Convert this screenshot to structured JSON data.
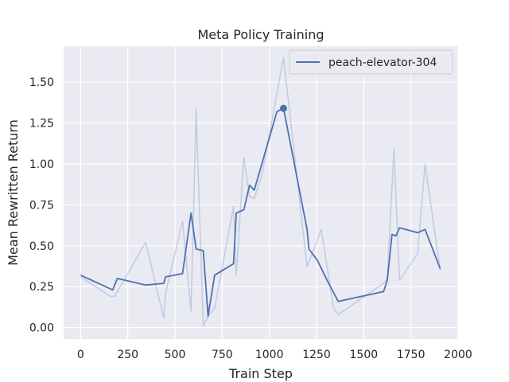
{
  "chart_data": {
    "type": "line",
    "title": "Meta Policy Training",
    "xlabel": "Train Step",
    "ylabel": "Mean Rewritten Return",
    "xlim": [
      -90,
      2000
    ],
    "ylim": [
      -0.07,
      1.72
    ],
    "xticks": [
      0,
      250,
      500,
      750,
      1000,
      1250,
      1500,
      1750,
      2000
    ],
    "yticks": [
      0.0,
      0.25,
      0.5,
      0.75,
      1.0,
      1.25,
      1.5
    ],
    "xtick_labels": [
      "0",
      "250",
      "500",
      "750",
      "1000",
      "1250",
      "1500",
      "1750",
      "2000"
    ],
    "ytick_labels": [
      "0.00",
      "0.25",
      "0.50",
      "0.75",
      "1.00",
      "1.25",
      "1.50"
    ],
    "grid": true,
    "legend_position": "top-right",
    "colors": {
      "background": "#EAEAF2",
      "grid": "#FFFFFF",
      "line": "#4C72B0",
      "raw_line": "#4C72B0"
    },
    "series": [
      {
        "name": "peach-elevator-304",
        "role": "smoothed",
        "x": [
          0,
          170,
          195,
          345,
          440,
          450,
          540,
          585,
          612,
          650,
          675,
          710,
          810,
          825,
          865,
          895,
          920,
          1040,
          1075,
          1200,
          1210,
          1255,
          1310,
          1365,
          1605,
          1625,
          1650,
          1670,
          1690,
          1785,
          1825,
          1905
        ],
        "y": [
          0.32,
          0.23,
          0.3,
          0.26,
          0.27,
          0.31,
          0.33,
          0.7,
          0.48,
          0.47,
          0.07,
          0.32,
          0.39,
          0.7,
          0.72,
          0.87,
          0.84,
          1.32,
          1.34,
          0.6,
          0.48,
          0.41,
          0.28,
          0.16,
          0.22,
          0.29,
          0.57,
          0.56,
          0.61,
          0.58,
          0.6,
          0.36
        ]
      },
      {
        "role": "raw",
        "x": [
          0,
          160,
          180,
          345,
          440,
          450,
          540,
          585,
          612,
          650,
          675,
          710,
          810,
          825,
          865,
          895,
          920,
          960,
          1075,
          1200,
          1275,
          1340,
          1365,
          1605,
          1625,
          1660,
          1690,
          1785,
          1825,
          1905
        ],
        "y": [
          0.31,
          0.19,
          0.19,
          0.52,
          0.06,
          0.21,
          0.65,
          0.1,
          1.34,
          0.01,
          0.07,
          0.12,
          0.74,
          0.32,
          1.04,
          0.8,
          0.79,
          0.93,
          1.65,
          0.37,
          0.6,
          0.12,
          0.08,
          0.27,
          0.3,
          1.09,
          0.29,
          0.45,
          1.0,
          0.35
        ]
      }
    ],
    "highlight_point": {
      "x": 1075,
      "y": 1.34
    }
  }
}
